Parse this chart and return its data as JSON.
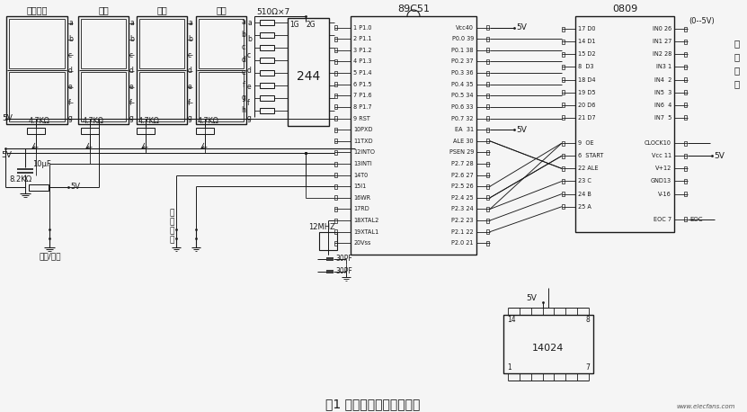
{
  "title": "图1 数字电压表电路原理图",
  "title_fontsize": 10,
  "bg_color": "#f5f5f5",
  "line_color": "#1a1a1a",
  "text_color": "#1a1a1a",
  "fig_width": 8.31,
  "fig_height": 4.58,
  "dpi": 100,
  "watermark": "www.elecfans.com",
  "seg_labels": [
    "显示通道",
    "百位",
    "十位",
    "个位"
  ],
  "chip89c51": "89C51",
  "chip0809": "0809",
  "chip244": "244",
  "chip14024": "14024",
  "resistor_510": "510Ω×7",
  "res47k": "4.7KΩ",
  "res82k": "8.2KΩ",
  "cap10uf": "10μF",
  "crystal": "12MHZ",
  "cap30pf": "30PF",
  "label_5v": "5V",
  "sw_labels": [
    "单路/循环",
    "通\n道\n选\n择"
  ],
  "analog_label": "(0--5V)",
  "moni": [
    "模",
    "拟",
    "输",
    "入"
  ],
  "left_pins_89": [
    "1 P1.0",
    "2 P1.1",
    "3 P1.2",
    "4 P1.3",
    "5 P1.4",
    "6 P1.5",
    "7 P1.6",
    "8 P1.7",
    "9 RST",
    "10PXD",
    "11TXD",
    "12INTO",
    "13INTI",
    "14T0",
    "15I1",
    "16WR",
    "17RD",
    "18XTAL2",
    "19XTAL1",
    "20Vss"
  ],
  "right_pins_89": [
    "Vcc40",
    "P0.0 39",
    "P0.1 38",
    "P0.2 37",
    "P0.3 36",
    "P0.4 35",
    "P0.5 34",
    "P0.6 33",
    "P0.7 32",
    "EA  31",
    "ALE 30",
    "PSEN 29",
    "P2.7 28",
    "P2.6 27",
    "P2.5 26",
    "P2.4 25",
    "P2.3 24",
    "P2.2 23",
    "P2.1 22",
    "P2.0 21"
  ],
  "left_pins_0809": [
    "17 D0",
    "14 D1",
    "15 D2",
    "8  D3",
    "18 D4",
    "19 D5",
    "20 D6",
    "21 D7",
    "",
    "9  OE",
    "6  START",
    "22 ALE",
    "23 C",
    "24 B",
    "25 A",
    ""
  ],
  "right_pins_0809": [
    "IN0 26",
    "IN1 27",
    "IN2 28",
    "IN3 1",
    "IN4  2",
    "IN5  3",
    "IN6  4",
    "IN7  5",
    "",
    "CLOCK10",
    "Vcc 11",
    "V+12",
    "GND13",
    "V-16",
    "",
    "EOC 7"
  ]
}
